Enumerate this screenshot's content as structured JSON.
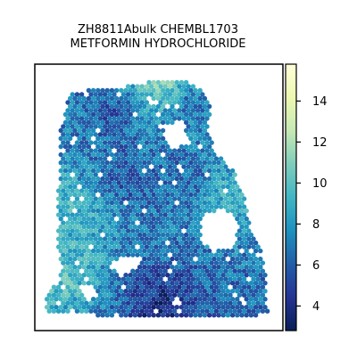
{
  "chart_data": {
    "type": "heatmap",
    "title_line1": "ZH8811Abulk CHEMBL1703",
    "title_line2": "METFORMIN HYDROCHLORIDE",
    "colorbar": {
      "colormap": "YlGnBu_r",
      "vmin": 2.8,
      "vmax": 15.8,
      "ticks": [
        4,
        6,
        8,
        10,
        12,
        14
      ],
      "tick_labels": [
        "4",
        "6",
        "8",
        "10",
        "12",
        "14"
      ]
    },
    "regions": [
      {
        "name": "upper-left tissue",
        "approx_value": 7
      },
      {
        "name": "left vertical band",
        "approx_value": 9
      },
      {
        "name": "lower-left corner",
        "approx_value": 10
      },
      {
        "name": "center-left diagonal band",
        "approx_value": 4.5
      },
      {
        "name": "top center (low)",
        "approx_value": 3.5
      },
      {
        "name": "top-right spot",
        "approx_value": 14
      },
      {
        "name": "right lobe",
        "approx_value": 10
      },
      {
        "name": "bottom center",
        "approx_value": 4
      },
      {
        "name": "bottom-right lobe",
        "approx_value": 6
      }
    ],
    "grid": false,
    "legend": "colorbar-right"
  }
}
